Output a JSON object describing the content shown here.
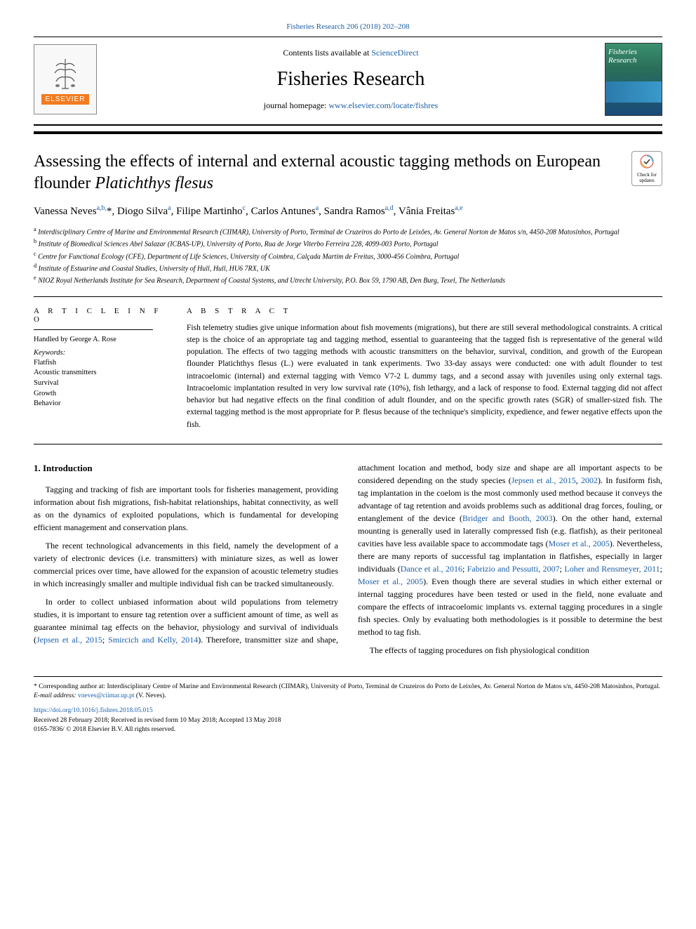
{
  "top_citation": "Fisheries Research 206 (2018) 202–208",
  "header": {
    "contents_prefix": "Contents lists available at ",
    "contents_link": "ScienceDirect",
    "journal_name": "Fisheries Research",
    "homepage_prefix": "journal homepage: ",
    "homepage_url": "www.elsevier.com/locate/fishres",
    "elsevier_label": "ELSEVIER",
    "cover_title": "Fisheries Research"
  },
  "updates_badge": {
    "line1": "Check for",
    "line2": "updates"
  },
  "article": {
    "title_plain": "Assessing the effects of internal and external acoustic tagging methods on European flounder ",
    "title_species": "Platichthys flesus",
    "authors_html": "Vanessa Neves<sup>a,b,</sup>*, Diogo Silva<sup>a</sup>, Filipe Martinho<sup>c</sup>, Carlos Antunes<sup>a</sup>, Sandra Ramos<sup>a,d</sup>, Vânia Freitas<sup>a,e</sup>",
    "affiliations": [
      {
        "sup": "a",
        "text": "Interdisciplinary Centre of Marine and Environmental Research (CIIMAR), University of Porto, Terminal de Cruzeiros do Porto de Leixões, Av. General Norton de Matos s/n, 4450-208 Matosinhos, Portugal"
      },
      {
        "sup": "b",
        "text": "Institute of Biomedical Sciences Abel Salazar (ICBAS-UP), University of Porto, Rua de Jorge Viterbo Ferreira 228, 4099-003 Porto, Portugal"
      },
      {
        "sup": "c",
        "text": "Centre for Functional Ecology (CFE), Department of Life Sciences, University of Coimbra, Calçada Martim de Freitas, 3000-456 Coimbra, Portugal"
      },
      {
        "sup": "d",
        "text": "Institute of Estuarine and Coastal Studies, University of Hull, Hull, HU6 7RX, UK"
      },
      {
        "sup": "e",
        "text": "NIOZ Royal Netherlands Institute for Sea Research, Department of Coastal Systems, and Utrecht University, P.O. Box 59, 1790 AB, Den Burg, Texel, The Netherlands"
      }
    ]
  },
  "info": {
    "heading": "A R T I C L E  I N F O",
    "handled_by": "Handled by George A. Rose",
    "keywords_label": "Keywords:",
    "keywords": [
      "Flatfish",
      "Acoustic transmitters",
      "Survival",
      "Growth",
      "Behavior"
    ]
  },
  "abstract": {
    "heading": "A B S T R A C T",
    "text": "Fish telemetry studies give unique information about fish movements (migrations), but there are still several methodological constraints. A critical step is the choice of an appropriate tag and tagging method, essential to guaranteeing that the tagged fish is representative of the general wild population. The effects of two tagging methods with acoustic transmitters on the behavior, survival, condition, and growth of the European flounder Platichthys flesus (L.) were evaluated in tank experiments. Two 33-day assays were conducted: one with adult flounder to test intracoelomic (internal) and external tagging with Vemco V7-2 L dummy tags, and a second assay with juveniles using only external tags. Intracoelomic implantation resulted in very low survival rate (10%), fish lethargy, and a lack of response to food. External tagging did not affect behavior but had negative effects on the final condition of adult flounder, and on the specific growth rates (SGR) of smaller-sized fish. The external tagging method is the most appropriate for P. flesus because of the technique's simplicity, expedience, and fewer negative effects upon the fish."
  },
  "body": {
    "section_heading": "1. Introduction",
    "paragraphs": [
      "Tagging and tracking of fish are important tools for fisheries management, providing information about fish migrations, fish-habitat relationships, habitat connectivity, as well as on the dynamics of exploited populations, which is fundamental for developing efficient management and conservation plans.",
      "The recent technological advancements in this field, namely the development of a variety of electronic devices (i.e. transmitters) with miniature sizes, as well as lower commercial prices over time, have allowed for the expansion of acoustic telemetry studies in which increasingly smaller and multiple individual fish can be tracked simultaneously.",
      "In order to collect unbiased information about wild populations from telemetry studies, it is important to ensure tag retention over a sufficient amount of time, as well as guarantee minimal tag effects on the behavior, physiology and survival of individuals (<span class=\"cite\">Jepsen et al., 2015</span>; <span class=\"cite\">Smircich and Kelly, 2014</span>). Therefore, transmitter size and shape, attachment location and method, body size and shape are all important aspects to be considered depending on the study species (<span class=\"cite\">Jepsen et al., 2015</span>, <span class=\"cite\">2002</span>). In fusiform fish, tag implantation in the coelom is the most commonly used method because it conveys the advantage of tag retention and avoids problems such as additional drag forces, fouling, or entanglement of the device (<span class=\"cite\">Bridger and Booth, 2003</span>). On the other hand, external mounting is generally used in laterally compressed fish (e.g. flatfish), as their peritoneal cavities have less available space to accommodate tags (<span class=\"cite\">Moser et al., 2005</span>). Nevertheless, there are many reports of successful tag implantation in flatfishes, especially in larger individuals (<span class=\"cite\">Dance et al., 2016</span>; <span class=\"cite\">Fabrizio and Pessutti, 2007</span>; <span class=\"cite\">Loher and Rensmeyer, 2011</span>; <span class=\"cite\">Moser et al., 2005</span>). Even though there are several studies in which either external or internal tagging procedures have been tested or used in the field, none evaluate and compare the effects of intracoelomic implants vs. external tagging procedures in a single fish species. Only by evaluating both methodologies is it possible to determine the best method to tag fish.",
      "The effects of tagging procedures on fish physiological condition"
    ]
  },
  "footer": {
    "corresponding": "* Corresponding author at: Interdisciplinary Centre of Marine and Environmental Research (CIIMAR), University of Porto, Terminal de Cruzeiros do Porto de Leixões, Av. General Norton de Matos s/n, 4450-208 Matosinhos, Portugal.",
    "email_label": "E-mail address: ",
    "email": "vneves@ciimar.up.pt",
    "email_suffix": " (V. Neves).",
    "doi": "https://doi.org/10.1016/j.fishres.2018.05.015",
    "received": "Received 28 February 2018; Received in revised form 10 May 2018; Accepted 13 May 2018",
    "issn": "0165-7836/ © 2018 Elsevier B.V. All rights reserved."
  },
  "colors": {
    "link": "#1a5ea8",
    "elsevier_orange": "#f47b20",
    "text": "#000000",
    "background": "#ffffff"
  },
  "typography": {
    "journal_title_pt": 28,
    "article_title_pt": 24,
    "authors_pt": 15,
    "body_pt": 12,
    "abstract_pt": 11.5,
    "affiliations_pt": 10,
    "footer_pt": 9.5
  }
}
